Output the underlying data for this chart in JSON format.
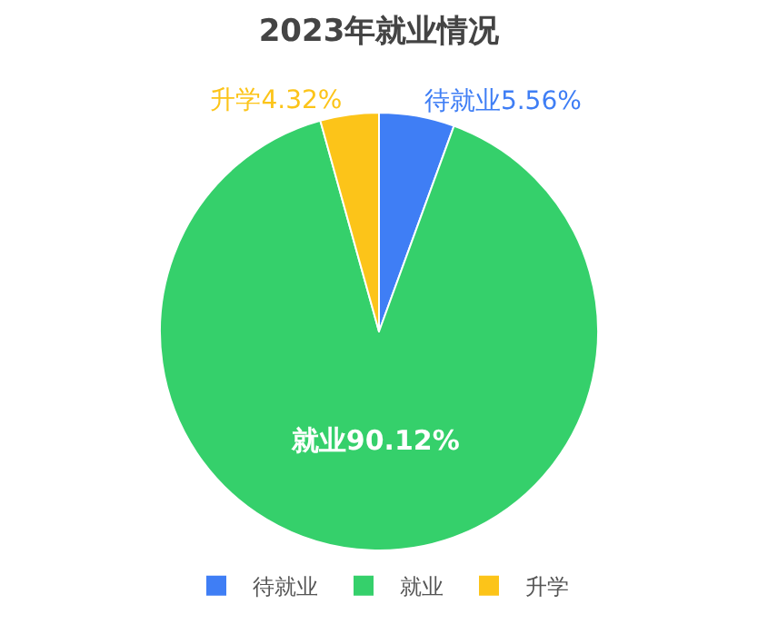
{
  "chart_data": {
    "type": "pie",
    "title": "2023年就业情况",
    "categories": [
      "待就业",
      "就业",
      "升学"
    ],
    "values": [
      5.56,
      90.12,
      4.32
    ],
    "colors": [
      "#3f7ef5",
      "#35d06b",
      "#fcc419"
    ],
    "value_labels": [
      "待就业5.56%",
      "就业90.12%",
      "升学4.32%"
    ],
    "legend": "bottom"
  }
}
